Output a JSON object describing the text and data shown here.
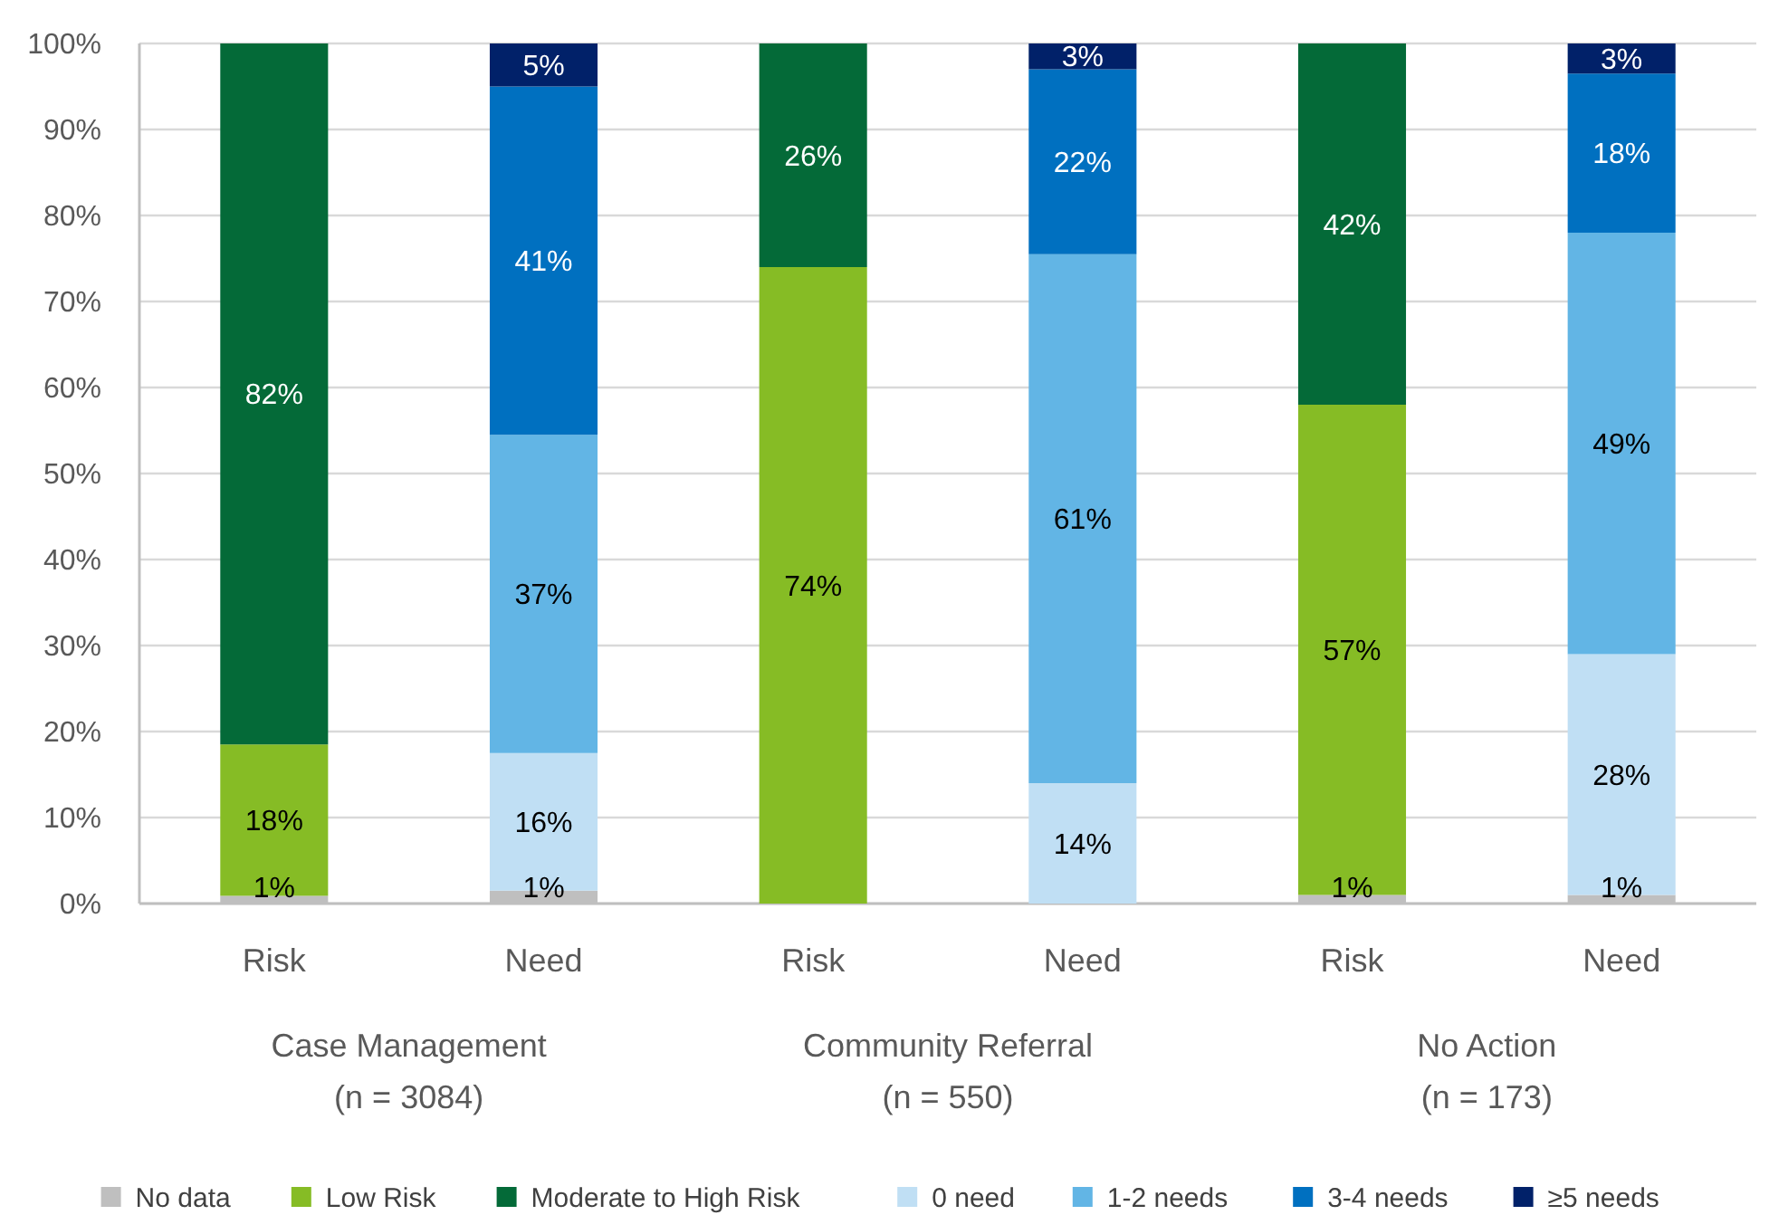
{
  "chart_data": {
    "type": "bar",
    "stacked": true,
    "categories": [
      "Risk",
      "Need",
      "Risk",
      "Need",
      "Risk",
      "Need"
    ],
    "series": [
      {
        "name": "No data",
        "color": "#bfbfbf",
        "values": [
          0.9,
          1.5,
          null,
          null,
          1,
          1
        ],
        "value_labels": [
          "1%",
          "1%",
          null,
          null,
          "1%",
          "1%"
        ]
      },
      {
        "name": "Low Risk",
        "color": "#86bc25",
        "values": [
          17.6,
          null,
          74,
          null,
          57,
          null
        ],
        "value_labels": [
          "18%",
          null,
          "74%",
          null,
          "57%",
          null
        ]
      },
      {
        "name": "Moderate to High Risk",
        "color": "#046a38",
        "values": [
          81.5,
          null,
          26,
          null,
          42,
          null
        ],
        "value_labels": [
          "82%",
          null,
          "26%",
          null,
          "42%",
          null
        ]
      },
      {
        "name": "0 need",
        "color": "#c0dff4",
        "values": [
          null,
          16,
          null,
          14,
          null,
          28
        ],
        "value_labels": [
          null,
          "16%",
          null,
          "14%",
          null,
          "28%"
        ]
      },
      {
        "name": "1-2 needs",
        "color": "#62b5e5",
        "values": [
          null,
          37,
          null,
          61.5,
          null,
          49
        ],
        "value_labels": [
          null,
          "37%",
          null,
          "61%",
          null,
          "49%"
        ]
      },
      {
        "name": "3-4 needs",
        "color": "#0070c0",
        "values": [
          null,
          40.5,
          null,
          21.5,
          null,
          18.5
        ],
        "value_labels": [
          null,
          "41%",
          null,
          "22%",
          null,
          "18%"
        ]
      },
      {
        "name": "≥5 needs",
        "color": "#012169",
        "values": [
          null,
          5,
          null,
          3,
          null,
          3.5
        ],
        "value_labels": [
          null,
          "5%",
          null,
          "3%",
          null,
          "3%"
        ]
      }
    ],
    "ylim": [
      0,
      100
    ],
    "yticks": [
      {
        "value": 0,
        "label": "0%"
      },
      {
        "value": 10,
        "label": "10%"
      },
      {
        "value": 20,
        "label": "20%"
      },
      {
        "value": 30,
        "label": "30%"
      },
      {
        "value": 40,
        "label": "40%"
      },
      {
        "value": 50,
        "label": "50%"
      },
      {
        "value": 60,
        "label": "60%"
      },
      {
        "value": 70,
        "label": "70%"
      },
      {
        "value": 80,
        "label": "80%"
      },
      {
        "value": 90,
        "label": "90%"
      },
      {
        "value": 100,
        "label": "100%"
      }
    ],
    "grid": "y",
    "legend": "bottom",
    "annotations": [
      "Case Management\n(n = 3084)",
      "Community Referral\n(n = 550)",
      "No Action\n(n = 173)"
    ]
  }
}
